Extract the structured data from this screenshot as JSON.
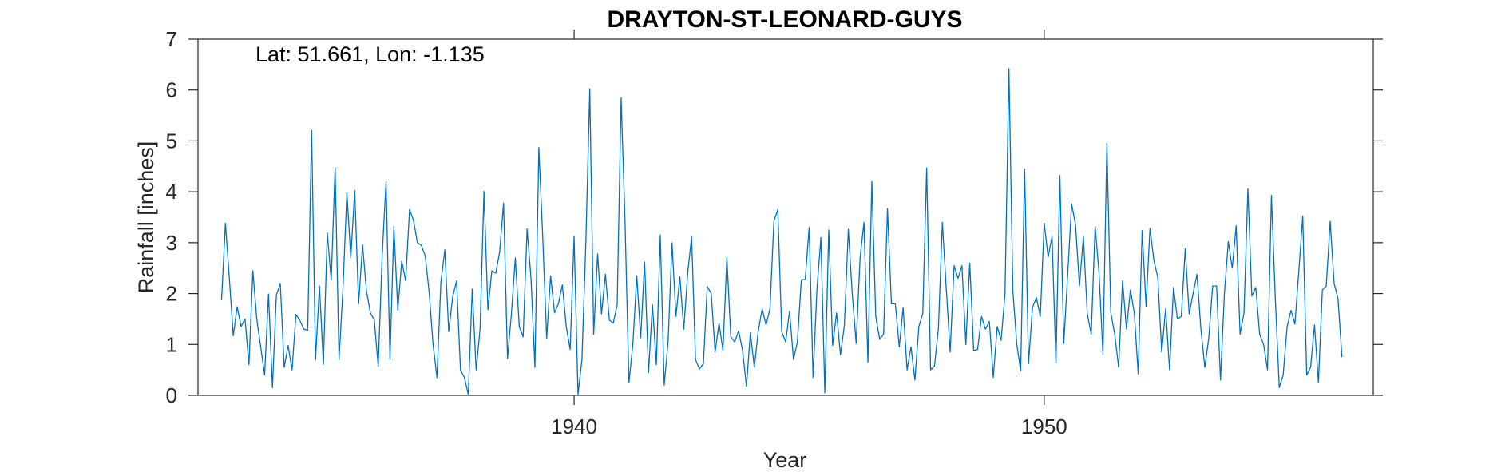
{
  "chart_data": {
    "type": "line",
    "title": "DRAYTON-ST-LEONARD-GUYS",
    "xlabel": "Year",
    "ylabel": "Rainfall [inches]",
    "annotation": "Lat: 51.661, Lon: -1.135",
    "xlim": [
      1932,
      1957
    ],
    "ylim": [
      0,
      7
    ],
    "x_ticks": [
      1940,
      1950
    ],
    "y_ticks": [
      0,
      1,
      2,
      3,
      4,
      5,
      6,
      7
    ],
    "grid": false,
    "legend": "none",
    "series_color": "#0072BD",
    "x_start": 1932.5,
    "x_step_months": 1,
    "series": [
      {
        "values": [
          1.87,
          3.38,
          2.3,
          1.17,
          1.74,
          1.35,
          1.5,
          0.6,
          2.45,
          1.5,
          0.95,
          0.4,
          1.99,
          0.15,
          1.97,
          2.2,
          0.55,
          0.98,
          0.5,
          1.59,
          1.47,
          1.3,
          1.28,
          5.21,
          0.7,
          2.15,
          0.61,
          3.19,
          2.26,
          4.48,
          0.7,
          2.1,
          3.98,
          2.7,
          4.03,
          1.8,
          2.96,
          2.05,
          1.62,
          1.48,
          0.57,
          2.73,
          4.2,
          0.7,
          3.32,
          1.67,
          2.64,
          2.25,
          3.65,
          3.44,
          3.0,
          2.95,
          2.74,
          2.03,
          1.0,
          0.35,
          2.23,
          2.86,
          1.25,
          1.93,
          2.25,
          0.5,
          0.35,
          0.02,
          2.09,
          0.5,
          1.3,
          4.01,
          1.68,
          2.45,
          2.4,
          2.82,
          3.78,
          0.72,
          1.6,
          2.7,
          1.35,
          1.15,
          3.27,
          2.3,
          0.55,
          4.87,
          3.1,
          1.12,
          2.35,
          1.62,
          1.8,
          2.17,
          1.35,
          0.9,
          3.12,
          0.02,
          0.7,
          3.0,
          6.02,
          1.2,
          2.78,
          1.6,
          2.38,
          1.48,
          1.42,
          1.78,
          5.85,
          3.42,
          0.25,
          1.0,
          2.35,
          1.13,
          2.62,
          0.45,
          1.78,
          0.6,
          3.15,
          0.2,
          1.05,
          3.0,
          1.55,
          2.33,
          1.3,
          2.4,
          3.12,
          0.7,
          0.52,
          0.62,
          2.14,
          2.0,
          0.85,
          1.42,
          0.88,
          2.71,
          1.15,
          1.05,
          1.27,
          0.88,
          0.18,
          1.23,
          0.55,
          1.25,
          1.7,
          1.38,
          1.7,
          3.42,
          3.65,
          1.25,
          1.05,
          1.65,
          0.7,
          1.05,
          2.27,
          2.28,
          3.3,
          0.35,
          2.1,
          3.1,
          0.05,
          3.25,
          0.98,
          1.62,
          0.8,
          1.38,
          3.26,
          2.0,
          1.02,
          2.7,
          3.4,
          0.65,
          4.2,
          1.55,
          1.1,
          1.2,
          3.67,
          1.8,
          1.8,
          0.95,
          1.72,
          0.5,
          0.95,
          0.3,
          1.35,
          1.6,
          4.47,
          0.5,
          0.58,
          1.32,
          3.4,
          2.1,
          0.85,
          2.55,
          2.3,
          2.55,
          1.0,
          2.6,
          0.88,
          0.9,
          1.55,
          1.3,
          1.45,
          0.35,
          1.35,
          1.08,
          2.0,
          6.42,
          2.05,
          1.0,
          0.48,
          4.45,
          0.62,
          1.72,
          1.92,
          1.55,
          3.38,
          2.72,
          3.12,
          0.63,
          4.32,
          1.02,
          2.38,
          3.76,
          3.35,
          2.15,
          3.12,
          1.6,
          1.2,
          3.32,
          2.4,
          0.8,
          4.95,
          1.62,
          1.2,
          0.55,
          2.25,
          1.3,
          2.07,
          1.62,
          0.42,
          3.24,
          1.75,
          3.28,
          2.65,
          2.32,
          0.85,
          1.7,
          0.5,
          2.12,
          1.5,
          1.55,
          2.88,
          1.6,
          2.0,
          2.38,
          1.3,
          0.55,
          1.12,
          2.15,
          2.15,
          0.3,
          2.0,
          3.02,
          2.5,
          3.33,
          1.2,
          1.62,
          4.06,
          1.95,
          2.12,
          1.2,
          1.0,
          0.5,
          3.93,
          1.9,
          0.15,
          0.4,
          1.35,
          1.67,
          1.4,
          2.45,
          3.52,
          0.4,
          0.55,
          1.38,
          0.25,
          2.07,
          2.15,
          3.42,
          2.2,
          1.9,
          0.75
        ]
      }
    ]
  }
}
